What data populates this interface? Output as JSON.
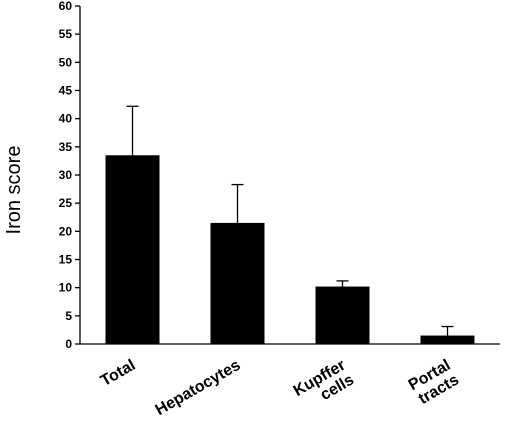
{
  "chart_data": {
    "type": "bar",
    "ylabel": "Iron score",
    "xlabel": "",
    "ylim": [
      0,
      60
    ],
    "ytick_step": 5,
    "grid": false,
    "legend": "none",
    "bar_color": "#000000",
    "categories": [
      [
        "Total"
      ],
      [
        "Hepatocytes"
      ],
      [
        "Kupffer",
        "cells"
      ],
      [
        "Portal",
        "tracts"
      ]
    ],
    "values": [
      33.5,
      21.5,
      10.2,
      1.5
    ],
    "error_plus": [
      8.7,
      6.8,
      1.0,
      1.6
    ]
  }
}
